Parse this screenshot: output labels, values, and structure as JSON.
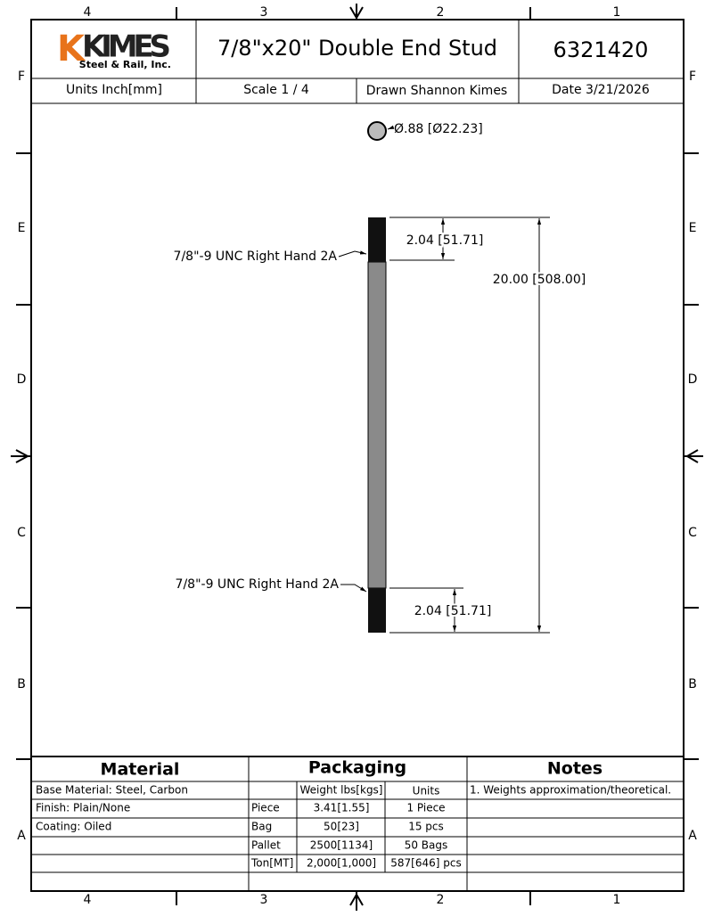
{
  "border": {
    "columns": [
      "4",
      "3",
      "2",
      "1"
    ],
    "rows": [
      "F",
      "E",
      "D",
      "C",
      "B",
      "A"
    ]
  },
  "header": {
    "logo_main": "KIMES",
    "logo_sub": "Steel & Rail, Inc.",
    "title": "7/8\"x20\" Double End Stud",
    "part_number": "6321420",
    "units": "Units Inch[mm]",
    "scale": "Scale 1 / 4",
    "drawn": "Drawn Shannon Kimes",
    "date": "Date 3/21/2026"
  },
  "drawing": {
    "diameter": "Ø.88 [Ø22.23]",
    "thread_top": "7/8\"-9 UNC Right Hand 2A",
    "thread_bottom": "7/8\"-9 UNC Right Hand 2A",
    "dim_top": "2.04 [51.71]",
    "dim_overall": "20.00 [508.00]",
    "dim_bottom": "2.04 [51.71]"
  },
  "table": {
    "material": {
      "title": "Material",
      "rows": [
        "Base Material: Steel, Carbon",
        "Finish: Plain/None",
        "Coating: Oiled"
      ]
    },
    "packaging": {
      "title": "Packaging",
      "header": [
        "Weight lbs[kgs]",
        "Units"
      ],
      "rows": [
        [
          "Piece",
          "3.41[1.55]",
          "1 Piece"
        ],
        [
          "Bag",
          "50[23]",
          "15 pcs"
        ],
        [
          "Pallet",
          "2500[1134]",
          "50 Bags"
        ],
        [
          "Ton[MT]",
          "2,000[1,000]",
          "587[646] pcs"
        ]
      ]
    },
    "notes": {
      "title": "Notes",
      "rows": [
        "1. Weights approximation/theoretical."
      ]
    }
  }
}
